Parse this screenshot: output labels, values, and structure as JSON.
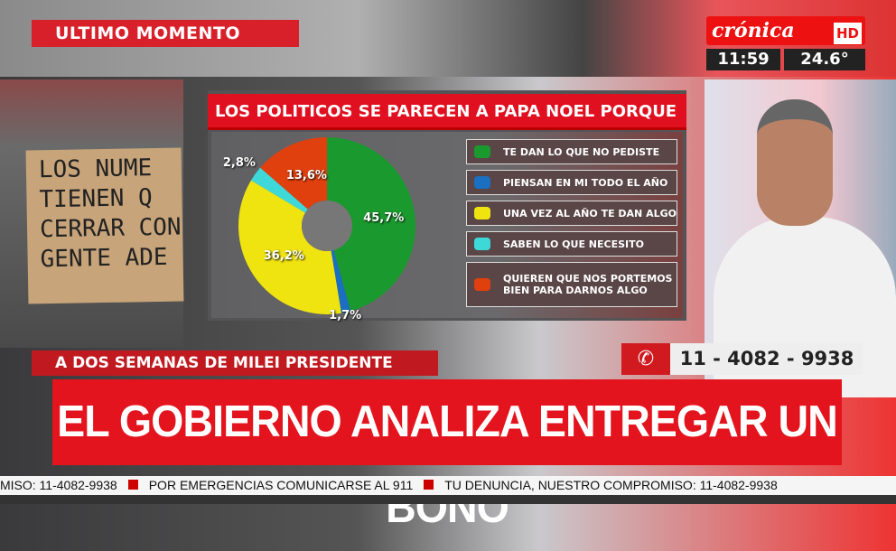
{
  "header": {
    "ultimo": "ULTIMO MOMENTO"
  },
  "logo": {
    "brand": "crónica",
    "hd": "HD",
    "time": "11:59",
    "temp": "24.6°"
  },
  "photo_sign": "LOS NUME\nTIENEN Q\nCERRAR CON\nGENTE ADE",
  "chart_data": {
    "type": "pie",
    "title": "LOS POLITICOS SE PARECEN A PAPA NOEL PORQUE",
    "donut": true,
    "categories": [
      "TE DAN LO QUE NO PEDISTE",
      "PIENSAN EN MI TODO EL AÑO",
      "UNA VEZ AL AÑO TE DAN ALGO",
      "SABEN LO QUE NECESITO",
      "QUIEREN QUE NOS PORTEMOS BIEN PARA DARNOS ALGO"
    ],
    "values": [
      45.7,
      1.7,
      36.2,
      2.8,
      13.6
    ],
    "labels": [
      "45,7%",
      "1,7%",
      "36,2%",
      "2,8%",
      "13,6%"
    ],
    "colors": [
      "#1a9a2e",
      "#1a6fc0",
      "#f0e410",
      "#3fd8d8",
      "#e0400e"
    ],
    "legend": "right"
  },
  "subheadline": "A DOS SEMANAS DE MILEI PRESIDENTE",
  "phone": {
    "icon": "whatsapp-icon",
    "number": "11 - 4082 - 9938"
  },
  "headline": "EL GOBIERNO ANALIZA ENTREGAR UN BONO",
  "ticker": [
    "MISO: 11-4082-9938",
    "POR EMERGENCIAS COMUNICARSE AL 911",
    "TU DENUNCIA, NUESTRO COMPROMISO: 11-4082-9938"
  ]
}
